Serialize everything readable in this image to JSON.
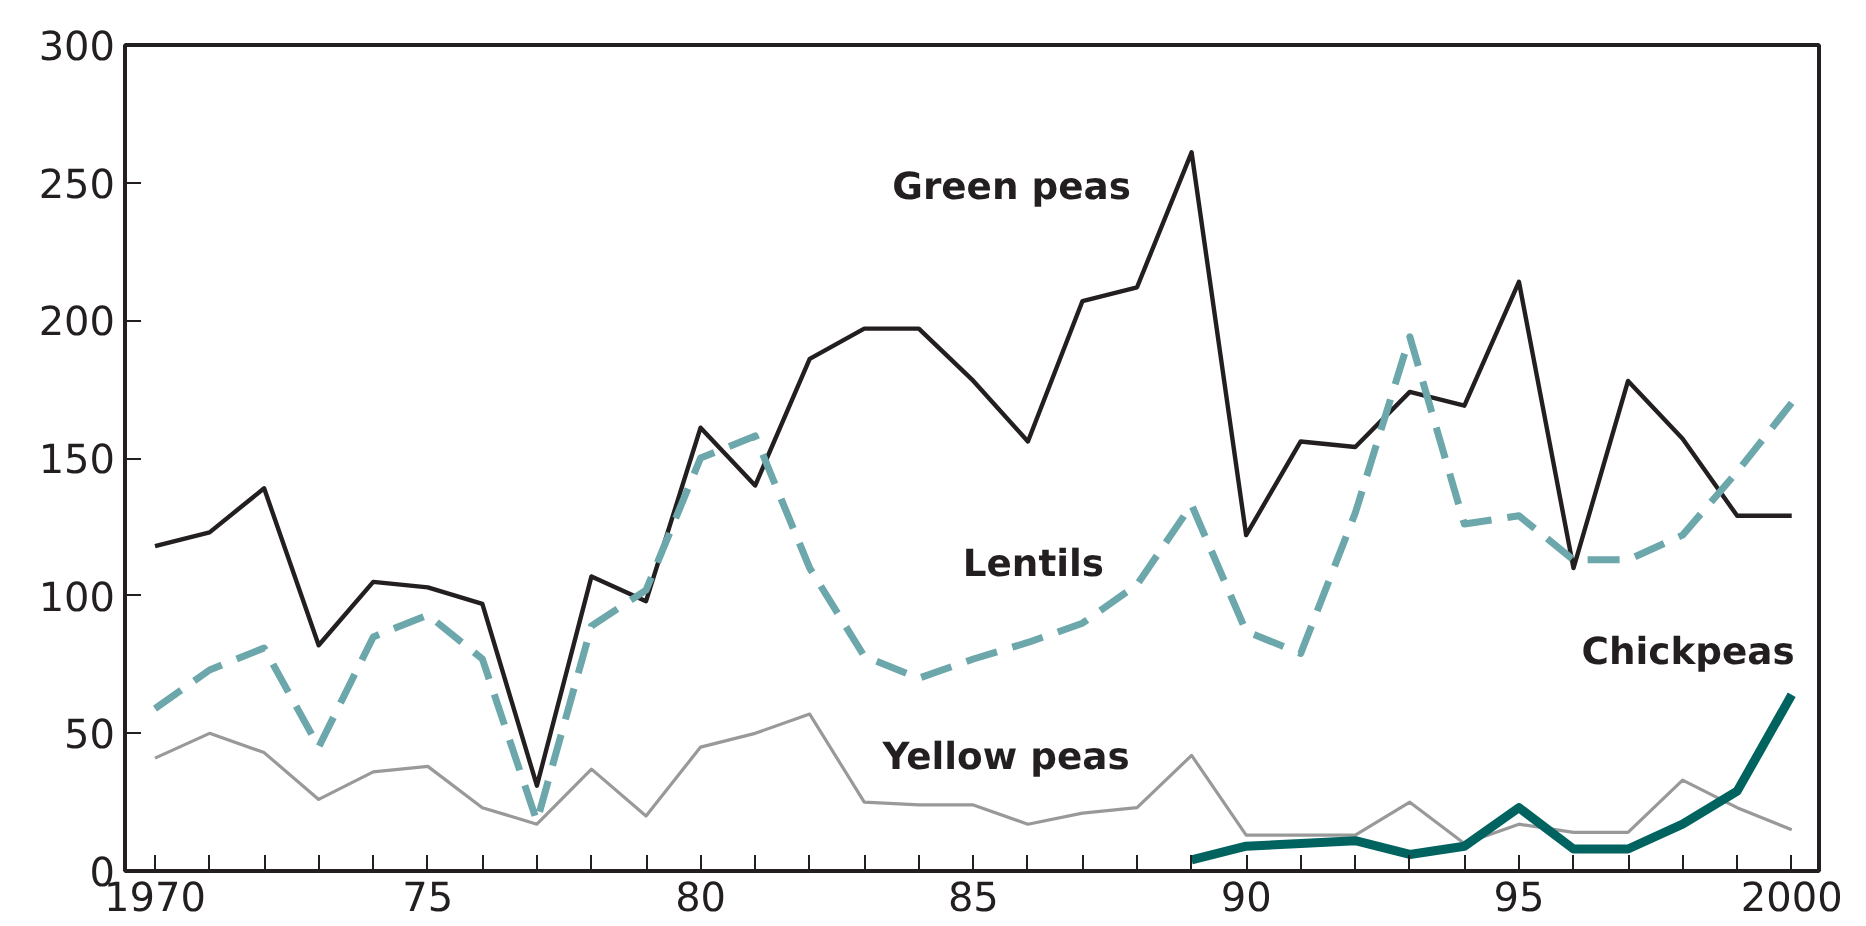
{
  "chart_data": {
    "type": "line",
    "x": [
      1970,
      1971,
      1972,
      1973,
      1974,
      1975,
      1976,
      1977,
      1978,
      1979,
      1980,
      1981,
      1982,
      1983,
      1984,
      1985,
      1986,
      1987,
      1988,
      1989,
      1990,
      1991,
      1992,
      1993,
      1994,
      1995,
      1996,
      1997,
      1998,
      1999,
      2000
    ],
    "series": [
      {
        "name": "Green peas",
        "color": "#231f20",
        "line_style": "solid",
        "values": [
          118,
          123,
          139,
          82,
          105,
          103,
          97,
          31,
          107,
          98,
          161,
          140,
          186,
          197,
          197,
          178,
          156,
          207,
          212,
          261,
          122,
          156,
          154,
          174,
          169,
          214,
          110,
          178,
          157,
          129,
          129
        ]
      },
      {
        "name": "Lentils",
        "color": "#6ca7ab",
        "line_style": "dashed",
        "values": [
          59,
          73,
          81,
          45,
          85,
          93,
          77,
          18,
          89,
          102,
          150,
          158,
          110,
          78,
          70,
          77,
          83,
          90,
          104,
          133,
          87,
          79,
          130,
          194,
          126,
          129,
          113,
          113,
          122,
          145,
          170
        ]
      },
      {
        "name": "Yellow peas",
        "color": "#999999",
        "line_style": "solid",
        "values": [
          41,
          50,
          43,
          26,
          36,
          38,
          23,
          17,
          37,
          20,
          45,
          50,
          57,
          25,
          24,
          24,
          17,
          21,
          23,
          42,
          13,
          13,
          13,
          25,
          10,
          17,
          14,
          14,
          33,
          23,
          15
        ]
      },
      {
        "name": "Chickpeas",
        "color": "#00635f",
        "line_style": "solid",
        "x": [
          1989,
          1990,
          1991,
          1992,
          1993,
          1994,
          1995,
          1996,
          1997,
          1998,
          1999,
          2000
        ],
        "values": [
          4,
          9,
          10,
          11,
          6,
          9,
          23,
          8,
          8,
          17,
          29,
          64
        ]
      }
    ],
    "xlim": [
      1969.45,
      2000.5
    ],
    "ylim": [
      0,
      300
    ],
    "xticks": [
      {
        "value": 1970,
        "label": "1970"
      },
      {
        "value": 1975,
        "label": "75"
      },
      {
        "value": 1980,
        "label": "80"
      },
      {
        "value": 1985,
        "label": "85"
      },
      {
        "value": 1990,
        "label": "90"
      },
      {
        "value": 1995,
        "label": "95"
      },
      {
        "value": 2000,
        "label": "2000"
      }
    ],
    "yticks": [
      0,
      50,
      100,
      150,
      200,
      250,
      300
    ]
  }
}
